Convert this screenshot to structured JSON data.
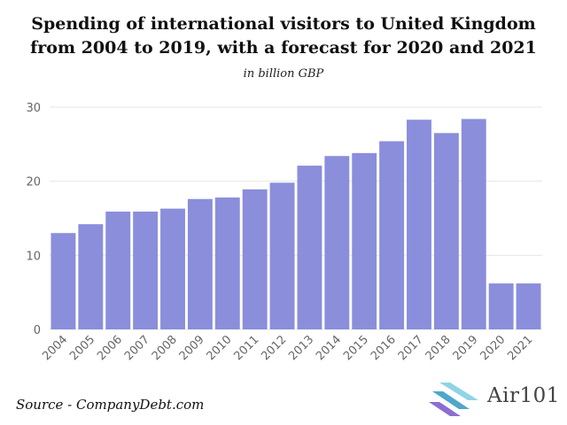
{
  "chart_data": {
    "type": "bar",
    "title_lines": [
      "Spending of international visitors to United Kingdom",
      "from 2004 to 2019, with a forecast for 2020 and 2021"
    ],
    "subtitle": "in billion GBP",
    "categories": [
      "2004",
      "2005",
      "2006",
      "2007",
      "2008",
      "2009",
      "2010",
      "2011",
      "2012",
      "2013",
      "2014",
      "2015",
      "2016",
      "2017",
      "2018",
      "2019",
      "2020",
      "2021"
    ],
    "values": [
      13.0,
      14.2,
      15.9,
      15.9,
      16.3,
      17.6,
      17.8,
      18.9,
      19.8,
      22.1,
      23.4,
      23.8,
      25.4,
      28.3,
      26.5,
      28.4,
      6.2,
      6.2
    ],
    "yticks": [
      0,
      10,
      20,
      30
    ],
    "ylim": [
      0,
      30
    ],
    "grid": true,
    "bar_color": "#8a8edb"
  },
  "footer": {
    "source": "Source - CompanyDebt.com",
    "logo_text": "Air101"
  }
}
